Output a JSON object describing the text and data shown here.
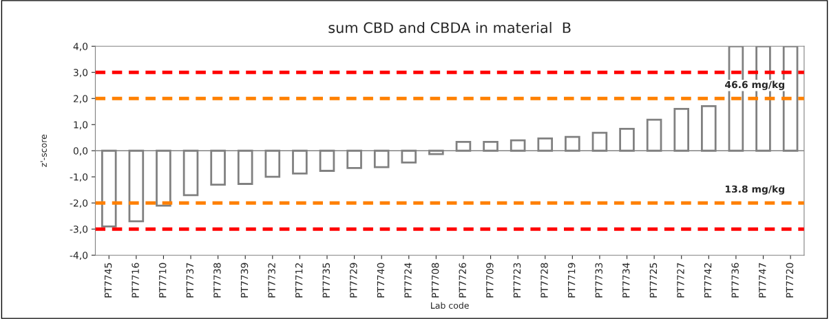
{
  "chart_data": {
    "type": "bar",
    "title": "sum CBD and CBDA in material  B",
    "xlabel": "Lab code",
    "ylabel": "z'-score",
    "categories": [
      "PT7745",
      "PT7716",
      "PT7710",
      "PT7737",
      "PT7738",
      "PT7739",
      "PT7732",
      "PT7712",
      "PT7735",
      "PT7729",
      "PT7740",
      "PT7724",
      "PT7708",
      "PT7726",
      "PT7709",
      "PT7723",
      "PT7728",
      "PT7719",
      "PT7733",
      "PT7734",
      "PT7725",
      "PT7727",
      "PT7742",
      "PT7736",
      "PT7747",
      "PT7720"
    ],
    "series": [
      {
        "color": "#ffffff",
        "values": [
          -2.9,
          -2.7,
          -2.1,
          -1.7,
          -1.3,
          -1.27,
          -1.0,
          -0.87,
          -0.77,
          -0.66,
          -0.63,
          -0.45,
          -0.13,
          0.34,
          0.34,
          0.4,
          0.47,
          0.53,
          0.69,
          0.84,
          1.19,
          1.6,
          1.71,
          4.0,
          4.0,
          4.0
        ]
      }
    ],
    "ylim": [
      -4,
      4
    ],
    "yticks": [
      {
        "value": -4,
        "label": "-4,0"
      },
      {
        "value": -3,
        "label": "-3,0"
      },
      {
        "value": -2,
        "label": "-2,0"
      },
      {
        "value": -1,
        "label": "-1,0"
      },
      {
        "value": 0,
        "label": "0,0"
      },
      {
        "value": 1,
        "label": "1,0"
      },
      {
        "value": 2,
        "label": "2,0"
      },
      {
        "value": 3,
        "label": "3,0"
      },
      {
        "value": 4,
        "label": "4,0"
      }
    ],
    "ref_lines": [
      {
        "axis": "y",
        "value": 3,
        "color": "#ff0000",
        "line_style": "dashed"
      },
      {
        "axis": "y",
        "value": 2,
        "color": "#ff8000",
        "line_style": "dashed"
      },
      {
        "axis": "y",
        "value": -2,
        "color": "#ff8000",
        "line_style": "dashed"
      },
      {
        "axis": "y",
        "value": -3,
        "color": "#ff0000",
        "line_style": "dashed"
      }
    ],
    "annotations": [
      "46.6 mg/kg",
      "13.8 mg/kg"
    ],
    "grid": false,
    "legend": false
  }
}
